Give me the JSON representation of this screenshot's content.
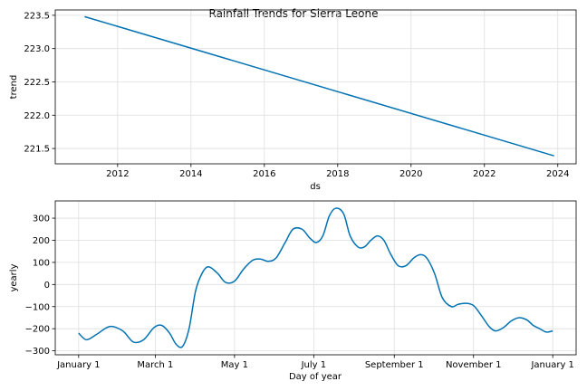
{
  "title": "Rainfall Trends for Sierra Leone",
  "line_color": "#0072B2",
  "chart_data": [
    {
      "type": "line",
      "xlabel": "ds",
      "ylabel": "trend",
      "x_ticks": [
        "2012",
        "2014",
        "2016",
        "2018",
        "2020",
        "2022",
        "2024"
      ],
      "y_ticks": [
        "221.5",
        "222.0",
        "222.5",
        "223.0",
        "223.5"
      ],
      "xlim": [
        2010.3,
        2024.5
      ],
      "ylim": [
        221.27,
        223.58
      ],
      "grid": true,
      "series": [
        {
          "x": [
            2011.1,
            2023.9
          ],
          "y": [
            223.48,
            221.39
          ]
        }
      ]
    },
    {
      "type": "line",
      "xlabel": "Day of year",
      "ylabel": "yearly",
      "x_ticks": [
        "January 1",
        "March 1",
        "May 1",
        "July 1",
        "September 1",
        "November 1",
        "January 1"
      ],
      "x_tick_days": [
        0,
        59,
        120,
        181,
        243,
        304,
        365
      ],
      "y_ticks": [
        "−300",
        "−200",
        "−100",
        "0",
        "100",
        "200",
        "300"
      ],
      "y_tick_values": [
        -300,
        -200,
        -100,
        0,
        100,
        200,
        300
      ],
      "xlim": [
        -18,
        383
      ],
      "ylim": [
        -318,
        378
      ],
      "grid": true,
      "series": [
        {
          "x": [
            0,
            6,
            14,
            24,
            34,
            42,
            50,
            58,
            64,
            70,
            75,
            80,
            85,
            90,
            95,
            100,
            107,
            113,
            120,
            127,
            134,
            140,
            146,
            152,
            159,
            165,
            172,
            178,
            183,
            188,
            193,
            198,
            204,
            209,
            215,
            220,
            225,
            230,
            235,
            240,
            246,
            252,
            258,
            263,
            268,
            274,
            280,
            287,
            292,
            298,
            304,
            310,
            316,
            321,
            327,
            333,
            339,
            345,
            350,
            355,
            360,
            365
          ],
          "y": [
            -220,
            -250,
            -225,
            -190,
            -210,
            -260,
            -250,
            -195,
            -185,
            -220,
            -270,
            -280,
            -200,
            -30,
            50,
            80,
            50,
            10,
            15,
            70,
            110,
            115,
            105,
            120,
            190,
            250,
            250,
            210,
            190,
            220,
            310,
            345,
            320,
            220,
            170,
            170,
            200,
            220,
            200,
            140,
            85,
            85,
            120,
            135,
            120,
            50,
            -60,
            -100,
            -90,
            -85,
            -95,
            -140,
            -190,
            -210,
            -195,
            -165,
            -150,
            -160,
            -185,
            -200,
            -215,
            -210
          ]
        }
      ]
    }
  ]
}
